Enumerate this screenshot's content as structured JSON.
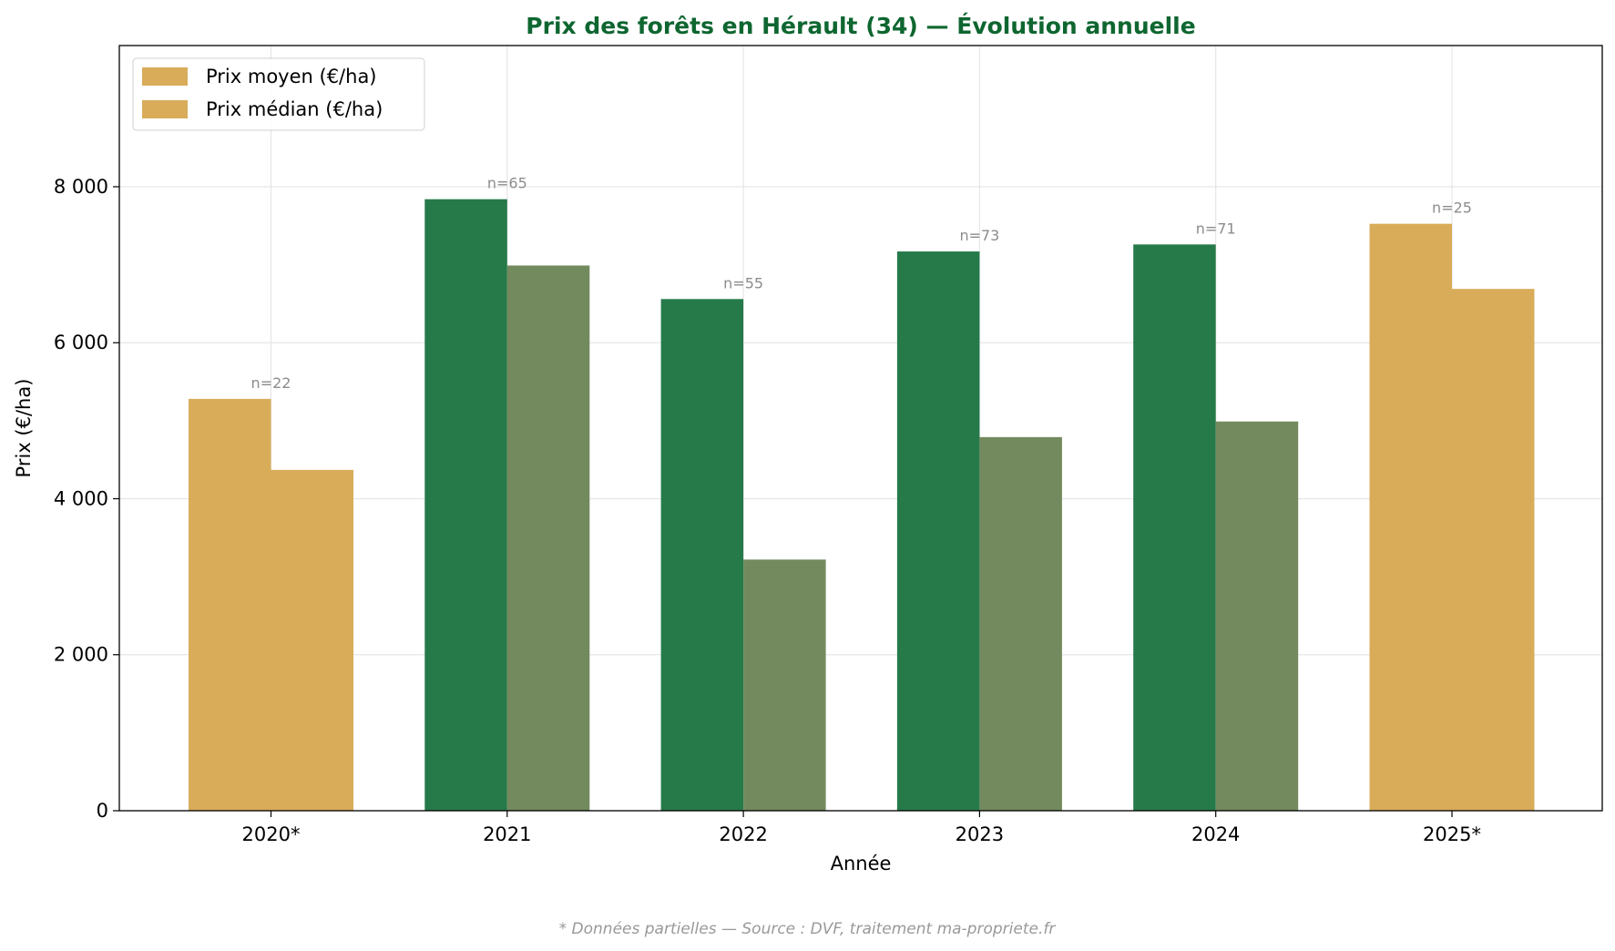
{
  "chart_data": {
    "type": "bar",
    "title": "Prix des forêts en Hérault (34) — Évolution annuelle",
    "xlabel": "Année",
    "ylabel": "Prix (€/ha)",
    "categories": [
      "2020*",
      "2021",
      "2022",
      "2023",
      "2024",
      "2025*"
    ],
    "partial": [
      true,
      false,
      false,
      false,
      false,
      true
    ],
    "series": [
      {
        "name": "Prix moyen (€/ha)",
        "values": [
          5280,
          7840,
          6560,
          7170,
          7260,
          7525
        ],
        "color": "#267A4A",
        "partial_color": "#D9AC5A"
      },
      {
        "name": "Prix médian (€/ha)",
        "values": [
          4370,
          6990,
          3220,
          4790,
          4990,
          6690
        ],
        "color": "#738A5F",
        "partial_color": "#D9AC5A"
      }
    ],
    "annotations": [
      "n=22",
      "n=65",
      "n=55",
      "n=73",
      "n=71",
      "n=25"
    ],
    "yticks": [
      0,
      2000,
      4000,
      6000,
      8000
    ],
    "ytick_labels": [
      "0",
      "2 000",
      "4 000",
      "6 000",
      "8 000"
    ],
    "ylim": [
      0,
      9810
    ],
    "grid": true,
    "legend": "top-left",
    "legend_colors": [
      "#D9AC5A",
      "#D9AC5A"
    ],
    "title_color": "#0E6630"
  },
  "footer": "* Données partielles — Source : DVF, traitement ma-propriete.fr"
}
